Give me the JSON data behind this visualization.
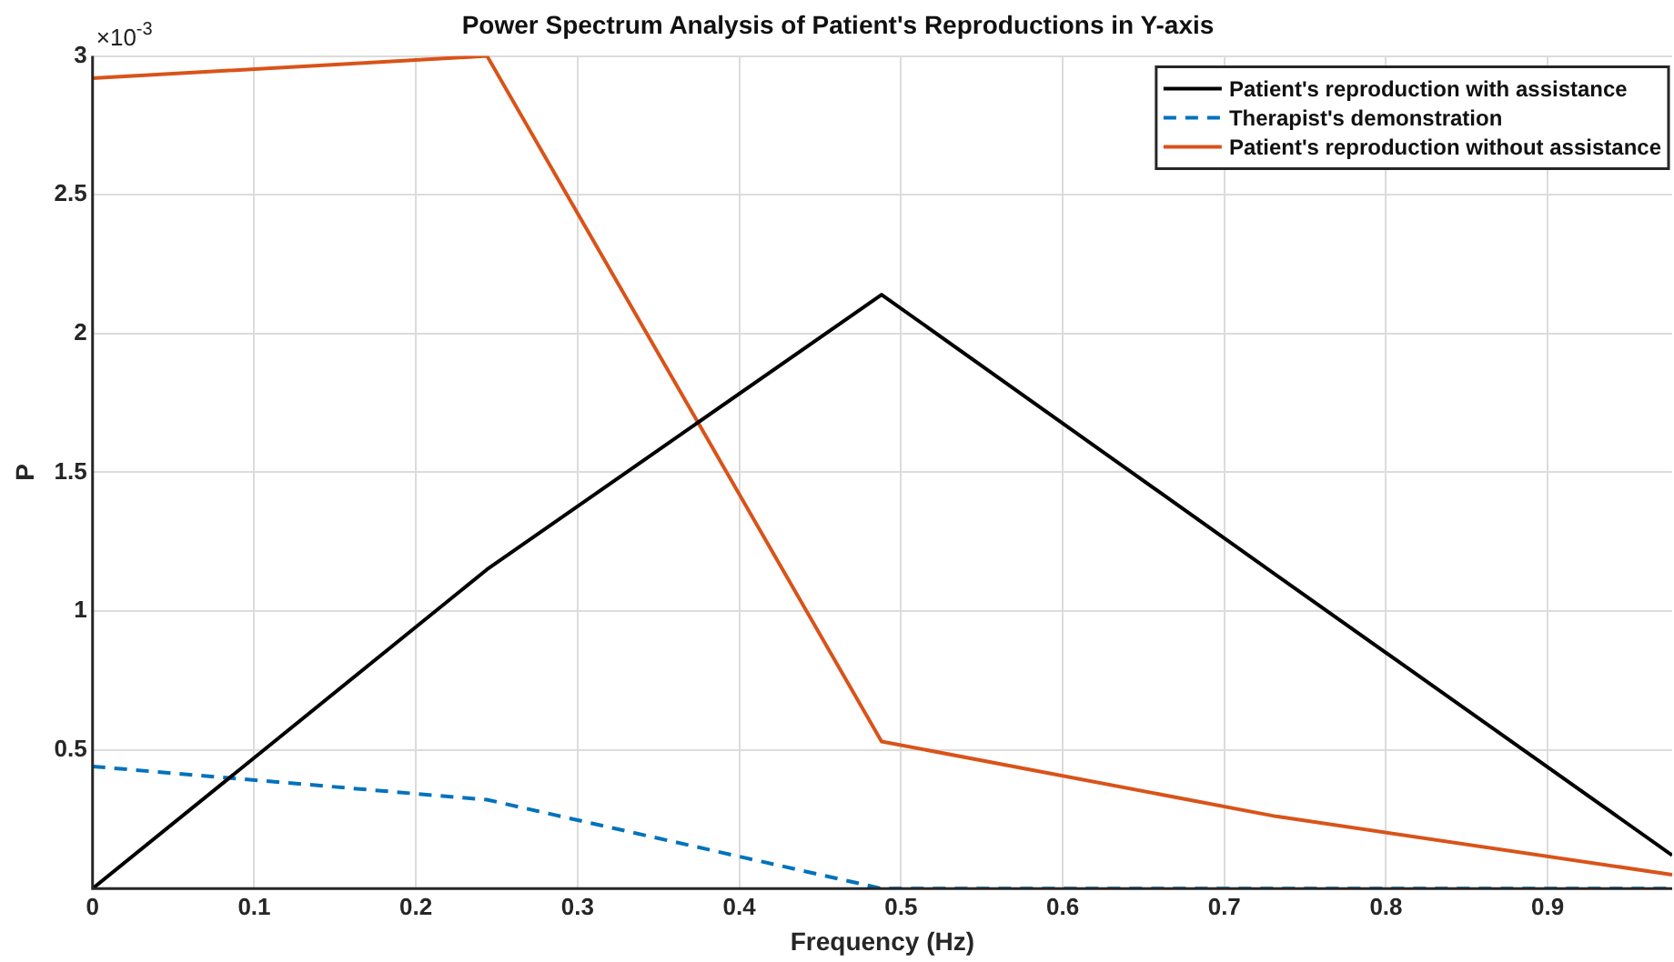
{
  "chart_data": {
    "type": "line",
    "title": "Power Spectrum Analysis of Patient's Reproductions in Y-axis",
    "xlabel": "Frequency (Hz)",
    "ylabel": "P",
    "annotations": [
      "×10$^{-3}$"
    ],
    "x": [
      0,
      0.244,
      0.488,
      0.732,
      0.977
    ],
    "series": [
      {
        "name": "Patient's reproduction with assistance",
        "color": "#000000",
        "values": [
          0,
          1.15,
          2.14,
          1.13,
          0.12
        ]
      },
      {
        "name": "Therapist's demonstration",
        "color": "#0072bd",
        "line_style": "dashed",
        "values": [
          0.44,
          0.32,
          0,
          0,
          0
        ]
      },
      {
        "name": "Patient's reproduction without assistance",
        "color": "#d95319",
        "values": [
          2.92,
          3,
          0.53,
          0.26,
          0.05
        ]
      }
    ],
    "xlim": [
      0,
      0.977
    ],
    "xticks": [
      0,
      0.1,
      0.2,
      0.3,
      0.4,
      0.5,
      0.6,
      0.7,
      0.8,
      0.9
    ],
    "ylim": [
      0,
      3
    ],
    "yticks": [
      0.5,
      1,
      1.5,
      2,
      2.5,
      3
    ],
    "grid": true,
    "legend": "top right",
    "marker": "none"
  }
}
